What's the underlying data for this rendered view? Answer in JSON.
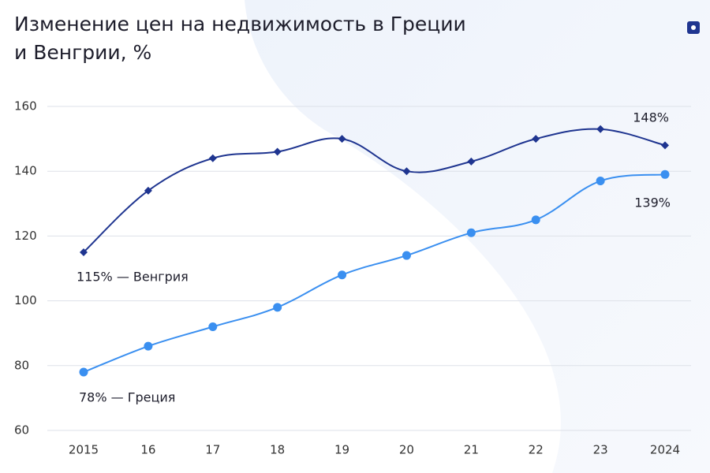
{
  "chart_data": {
    "type": "line",
    "title_lines": [
      "Изменение цен на недвижимость в Греции",
      "и Венгрии, %"
    ],
    "categories": [
      "2015",
      "16",
      "17",
      "18",
      "19",
      "20",
      "21",
      "22",
      "23",
      "2024"
    ],
    "series": [
      {
        "name": "Венгрия",
        "color": "#1f3590",
        "marker": "diamond",
        "values": [
          115,
          134,
          144,
          146,
          150,
          140,
          143,
          150,
          153,
          148
        ]
      },
      {
        "name": "Греция",
        "color": "#3a8ff0",
        "marker": "circle",
        "values": [
          78,
          86,
          92,
          98,
          108,
          114,
          121,
          125,
          137,
          139
        ]
      }
    ],
    "annotations": [
      "115% — Венгрия",
      "78% — Греция",
      "148%",
      "139%"
    ],
    "ylim": [
      60,
      160
    ],
    "yticks": [
      60,
      80,
      100,
      120,
      140,
      160
    ],
    "grid": true
  }
}
